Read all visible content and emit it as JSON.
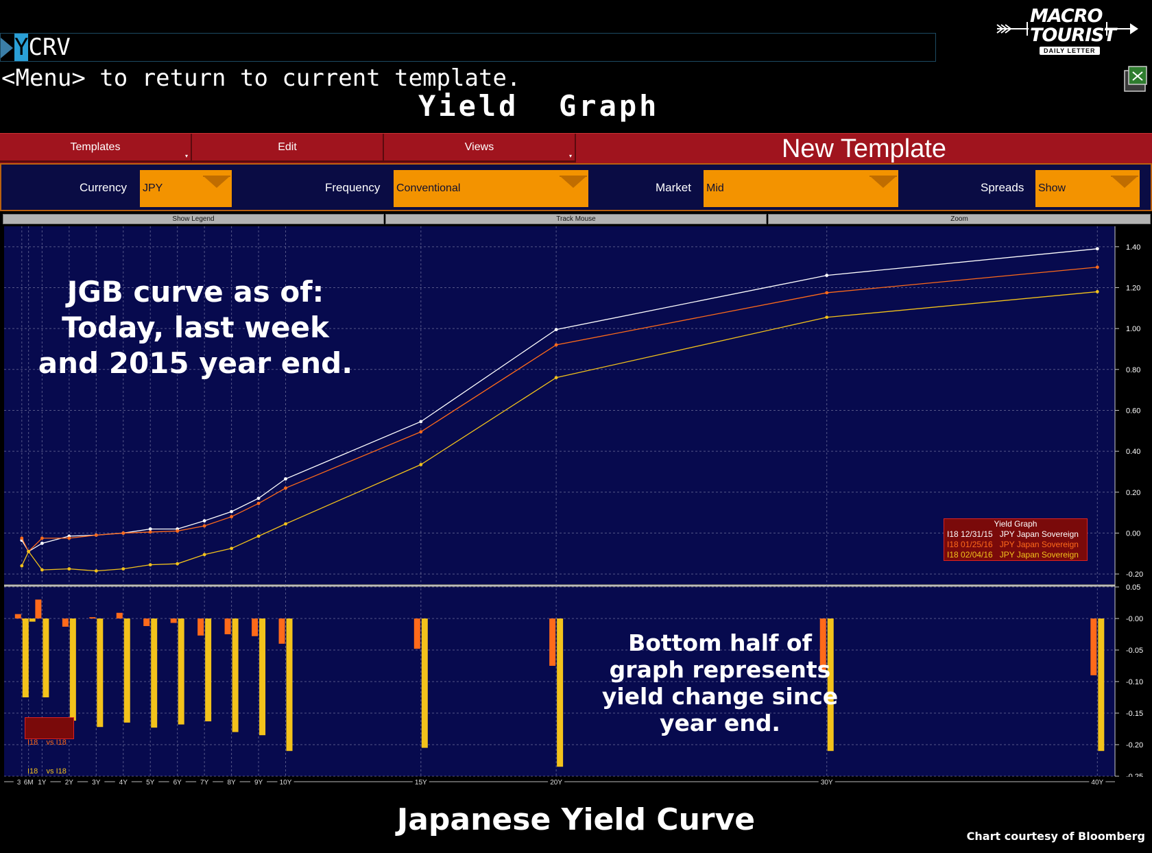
{
  "command": {
    "ticker_cursor": "Y",
    "ticker_rest": "CRV"
  },
  "menu_hint": "<Menu> to return to current template.",
  "screen_title": "Yield  Graph",
  "logo": {
    "line1": "MACRO",
    "line2": "TOURIST",
    "sub": "DAILY LETTER"
  },
  "menubar": {
    "templates": "Templates",
    "edit": "Edit",
    "views": "Views",
    "new_template": "New Template"
  },
  "params": {
    "currency_label": "Currency",
    "currency_value": "JPY",
    "frequency_label": "Frequency",
    "frequency_value": "Conventional",
    "market_label": "Market",
    "market_value": "Mid",
    "spreads_label": "Spreads",
    "spreads_value": "Show"
  },
  "tabs": {
    "show_legend": "Show Legend",
    "track_mouse": "Track Mouse",
    "zoom": "Zoom"
  },
  "annotations": {
    "top": [
      "JGB curve as of:",
      "Today, last week",
      "and 2015 year end."
    ],
    "bottom": [
      "Bottom half of",
      "graph represents",
      "yield change since",
      "year end."
    ]
  },
  "legend": {
    "title": "Yield Graph",
    "rows": [
      {
        "label": "I18 12/31/15   JPY Japan Sovereign",
        "color": "#ffffff"
      },
      {
        "label": "I18 01/25/16   JPY Japan Sovereign",
        "color": "#ff6a1a"
      },
      {
        "label": "I18 02/04/16   JPY Japan Sovereign",
        "color": "#f3c21b"
      }
    ]
  },
  "mini_legend": {
    "rows": [
      {
        "label": "I18    vs I18",
        "color": "#ff6a1a"
      },
      {
        "label": "I18    vs I18",
        "color": "#f3c21b"
      }
    ]
  },
  "footer_title": "Japanese Yield Curve",
  "credit": "Chart courtesy of Bloomberg",
  "chart_data": {
    "type": "line",
    "x": [
      "3M",
      "6M",
      "1Y",
      "2Y",
      "3Y",
      "4Y",
      "5Y",
      "6Y",
      "7Y",
      "8Y",
      "9Y",
      "10Y",
      "15Y",
      "20Y",
      "30Y",
      "40Y"
    ],
    "x_years": [
      0.25,
      0.5,
      1,
      2,
      3,
      4,
      5,
      6,
      7,
      8,
      9,
      10,
      15,
      20,
      30,
      40
    ],
    "series": [
      {
        "name": "I18 12/31/15   JPY Japan Sovereign",
        "color": "#ffffff",
        "values": [
          -0.035,
          -0.09,
          -0.05,
          -0.015,
          -0.01,
          0.0,
          0.02,
          0.02,
          0.06,
          0.105,
          0.17,
          0.265,
          0.545,
          0.995,
          1.26,
          1.39
        ]
      },
      {
        "name": "I18 01/25/16   JPY Japan Sovereign",
        "color": "#ff6a1a",
        "values": [
          -0.025,
          -0.09,
          -0.025,
          -0.025,
          -0.01,
          0.0,
          0.005,
          0.01,
          0.035,
          0.08,
          0.145,
          0.22,
          0.495,
          0.92,
          1.175,
          1.3
        ]
      },
      {
        "name": "I18 02/04/16   JPY Japan Sovereign",
        "color": "#f3c21b",
        "values": [
          -0.16,
          -0.09,
          -0.18,
          -0.175,
          -0.185,
          -0.175,
          -0.155,
          -0.15,
          -0.105,
          -0.075,
          -0.015,
          0.045,
          0.335,
          0.76,
          1.055,
          1.18
        ]
      }
    ],
    "ylim": [
      -0.25,
      1.5
    ],
    "yticks": [
      "1.40",
      "1.20",
      "1.00",
      "0.80",
      "0.60",
      "0.40",
      "0.20",
      "0.00",
      "-0.20"
    ],
    "ytick_values": [
      1.4,
      1.2,
      1.0,
      0.8,
      0.6,
      0.4,
      0.2,
      0.0,
      -0.2
    ],
    "spreads": {
      "type": "bar",
      "ylim": [
        -0.25,
        0.05
      ],
      "yticks": [
        "0.05",
        "-0.00",
        "-0.05",
        "-0.10",
        "-0.15",
        "-0.20",
        "-0.25"
      ],
      "ytick_values": [
        0.05,
        0.0,
        -0.05,
        -0.1,
        -0.15,
        -0.2,
        -0.25
      ],
      "series": [
        {
          "name": "I18    vs I18",
          "color": "#ff6a1a",
          "values": [
            0.007,
            -0.003,
            0.03,
            -0.013,
            0.002,
            0.009,
            -0.012,
            -0.007,
            -0.027,
            -0.025,
            -0.028,
            -0.04,
            -0.048,
            -0.075,
            -0.085,
            -0.09
          ]
        },
        {
          "name": "I18    vs I18",
          "color": "#f3c21b",
          "values": [
            -0.125,
            -0.005,
            -0.125,
            -0.162,
            -0.172,
            -0.165,
            -0.173,
            -0.168,
            -0.163,
            -0.18,
            -0.185,
            -0.21,
            -0.205,
            -0.235,
            -0.21,
            -0.21
          ]
        }
      ]
    },
    "grid": true
  }
}
